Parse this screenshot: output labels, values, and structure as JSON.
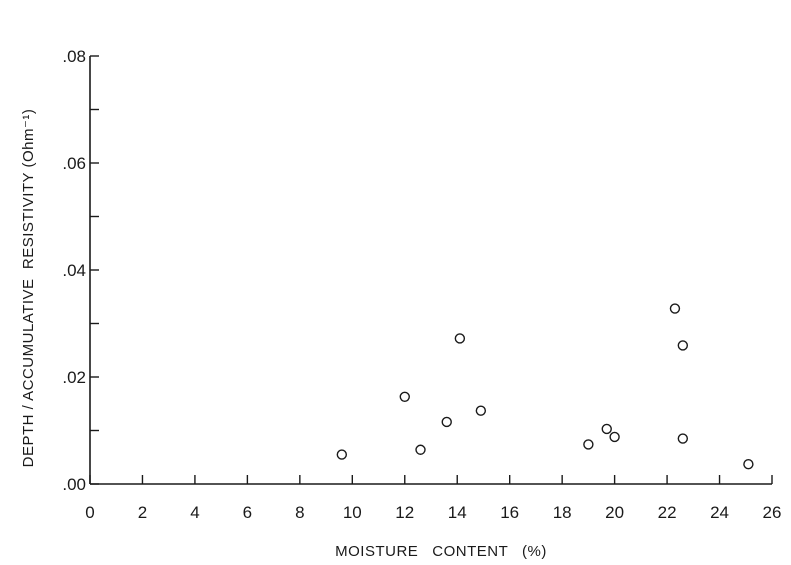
{
  "chart_data": {
    "type": "scatter",
    "title": "",
    "xlabel": "MOISTURE   CONTENT   (%)",
    "ylabel": "DEPTH / ACCUMULATIVE  RESISTIVITY (Ohm⁻¹)",
    "xlim": [
      0,
      26
    ],
    "ylim": [
      0,
      0.08
    ],
    "xticks": [
      0,
      2,
      4,
      6,
      8,
      10,
      12,
      14,
      16,
      18,
      20,
      22,
      24,
      26
    ],
    "xtick_labels": [
      "0",
      "2",
      "4",
      "6",
      "8",
      "10",
      "12",
      "14",
      "16",
      "18",
      "20",
      "22",
      "24",
      "26"
    ],
    "yticks": [
      0,
      0.01,
      0.02,
      0.03,
      0.04,
      0.05,
      0.06,
      0.07,
      0.08
    ],
    "ytick_labels": [
      ".00",
      "",
      ".02",
      "",
      ".04",
      "",
      ".06",
      "",
      ".08"
    ],
    "grid": false,
    "marker": "open-circle",
    "series": [
      {
        "points": [
          {
            "x": 9.6,
            "y": 0.0055
          },
          {
            "x": 12.0,
            "y": 0.0163
          },
          {
            "x": 12.6,
            "y": 0.0064
          },
          {
            "x": 13.6,
            "y": 0.0116
          },
          {
            "x": 14.1,
            "y": 0.0272
          },
          {
            "x": 14.9,
            "y": 0.0137
          },
          {
            "x": 19.0,
            "y": 0.0074
          },
          {
            "x": 19.7,
            "y": 0.0103
          },
          {
            "x": 20.0,
            "y": 0.0088
          },
          {
            "x": 22.3,
            "y": 0.0328
          },
          {
            "x": 22.6,
            "y": 0.0259
          },
          {
            "x": 22.6,
            "y": 0.0085
          },
          {
            "x": 25.1,
            "y": 0.0037
          }
        ]
      }
    ]
  }
}
